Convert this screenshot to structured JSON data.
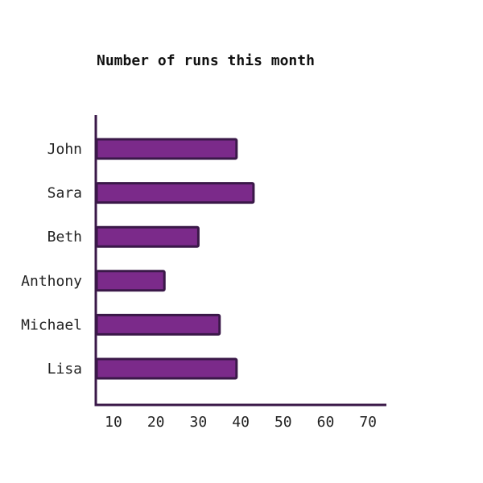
{
  "chart_data": {
    "type": "bar",
    "orientation": "horizontal",
    "title": "Number of runs this month",
    "xlabel": "",
    "ylabel": "",
    "categories": [
      "John",
      "Sara",
      "Beth",
      "Anthony",
      "Michael",
      "Lisa"
    ],
    "values": [
      39,
      43,
      30,
      22,
      35,
      39
    ],
    "xticks": [
      10,
      20,
      30,
      40,
      50,
      60,
      70
    ],
    "xlim": [
      5,
      72
    ],
    "grid": false,
    "colors": {
      "bar_fill": "#7B2A8A",
      "bar_stroke": "#3A1848",
      "axis": "#3A1848"
    }
  }
}
